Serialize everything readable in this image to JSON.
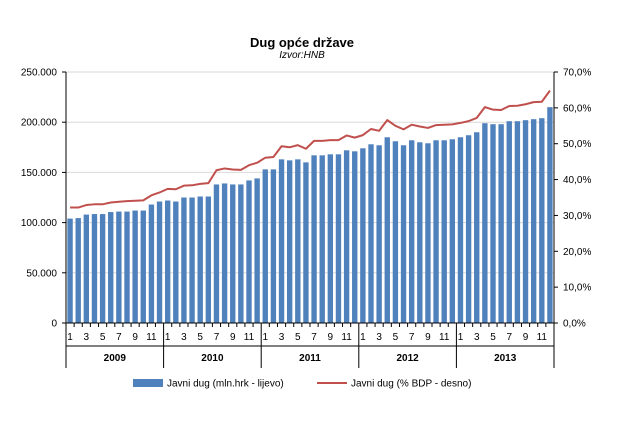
{
  "chart_data": {
    "type": "bar",
    "title": "Dug opće države",
    "subtitle": "Izvor:HNB",
    "colors": {
      "bar": "#4f81bd",
      "line": "#c0504d",
      "grid": "#d9d9d9",
      "axis": "#000000"
    },
    "y_left": {
      "min": 0,
      "max": 250000,
      "step": 50000,
      "tick_labels": [
        "0",
        "50.000",
        "100.000",
        "150.000",
        "200.000",
        "250.000"
      ]
    },
    "y_right": {
      "min": 0,
      "max": 70,
      "step": 10,
      "tick_labels": [
        "0,0%",
        "10,0%",
        "20,0%",
        "30,0%",
        "40,0%",
        "50,0%",
        "60,0%",
        "70,0%"
      ]
    },
    "grid": "horizontal",
    "legend_position": "bottom",
    "years": [
      "2009",
      "2010",
      "2011",
      "2012",
      "2013"
    ],
    "month_ticks": [
      "1",
      "3",
      "5",
      "7",
      "9",
      "11"
    ],
    "series": [
      {
        "name": "Javni dug (mln.hrk - lijevo)",
        "type": "bar",
        "axis": "left",
        "values": [
          104000,
          104500,
          108000,
          108500,
          108500,
          110500,
          111000,
          111000,
          112000,
          112000,
          118000,
          121000,
          122000,
          121000,
          125000,
          125000,
          126000,
          126000,
          138000,
          139000,
          138000,
          138000,
          142000,
          144000,
          153000,
          153000,
          163000,
          162000,
          163000,
          160000,
          167000,
          167000,
          168000,
          168000,
          172000,
          171000,
          174000,
          178000,
          177000,
          185000,
          181000,
          177000,
          182000,
          180000,
          179000,
          182000,
          182000,
          183000,
          185000,
          187000,
          190000,
          199000,
          198000,
          198000,
          201000,
          201000,
          202000,
          203000,
          204000,
          215000
        ]
      },
      {
        "name": "Javni dug (% BDP - desno)",
        "type": "line",
        "axis": "right",
        "values": [
          32.2,
          32.2,
          32.9,
          33.1,
          33.1,
          33.6,
          33.8,
          34.0,
          34.1,
          34.2,
          35.6,
          36.4,
          37.4,
          37.3,
          38.3,
          38.4,
          38.8,
          39.0,
          42.6,
          43.1,
          42.8,
          42.7,
          44.0,
          44.7,
          46.1,
          46.3,
          49.3,
          49.0,
          49.6,
          48.6,
          50.8,
          50.8,
          51.0,
          51.0,
          52.3,
          51.7,
          52.4,
          54.1,
          53.6,
          56.6,
          55.0,
          54.0,
          55.3,
          54.8,
          54.4,
          55.2,
          55.3,
          55.4,
          55.8,
          56.3,
          57.2,
          60.2,
          59.5,
          59.4,
          60.5,
          60.6,
          61.0,
          61.6,
          61.7,
          64.8
        ]
      }
    ]
  }
}
